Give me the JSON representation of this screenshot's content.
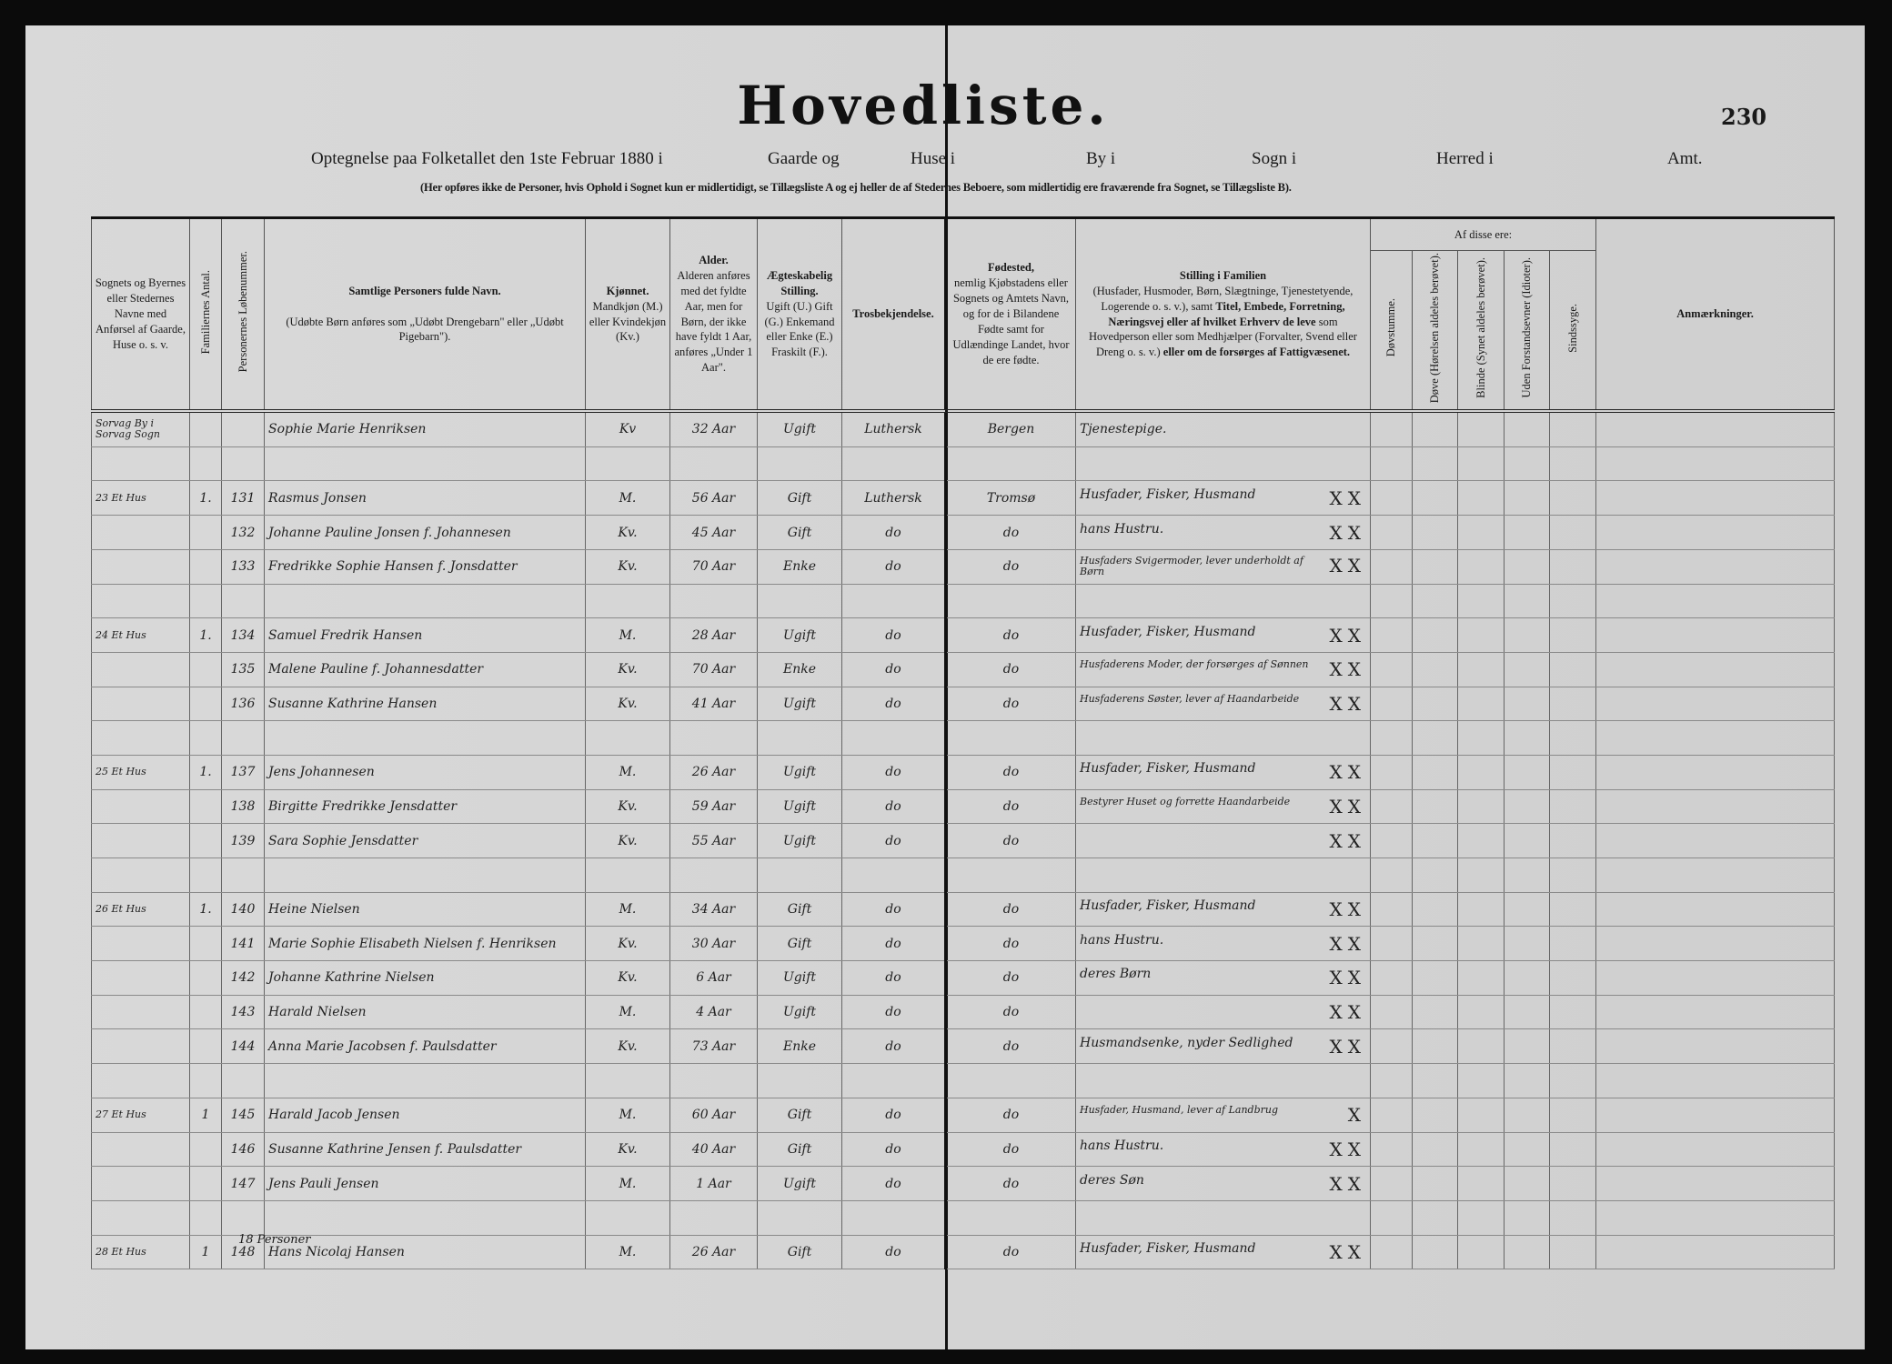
{
  "header": {
    "title": "Hovedliste.",
    "page_number": "230",
    "subtitle": {
      "census": "Optegnelse paa Folketallet den 1ste Februar 1880 i",
      "gaarde": "Gaarde og",
      "huse": "Huse i",
      "by": "By i",
      "sogn": "Sogn i",
      "herred": "Herred i",
      "amt": "Amt."
    },
    "note": "(Her opføres ikke de Personer, hvis Ophold i Sognet kun er midlertidigt, se Tillægsliste A og ej heller de af Stedernes Beboere, som midlertidig ere fraværende fra Sognet, se Tillægsliste B)."
  },
  "columns": {
    "place": "Sognets og Byernes eller Stedernes Navne med Anførsel af Gaarde, Huse o. s. v.",
    "families": "Familiernes Antal.",
    "number": "Personernes Løbenummer.",
    "name_title": "Samtlige Personers fulde Navn.",
    "name_note": "(Udøbte Børn anføres som „Udøbt Drengebarn\" eller „Udøbt Pigebarn\").",
    "sex_title": "Kjønnet.",
    "sex_note": "Mandkjøn (M.) eller Kvindekjøn (Kv.)",
    "age_title": "Alder.",
    "age_note": "Alderen anføres med det fyldte Aar, men for Børn, der ikke have fyldt 1 Aar, anføres „Under 1 Aar\".",
    "marital_title": "Ægteskabelig Stilling.",
    "marital_note": "Ugift (U.) Gift (G.) Enkemand eller Enke (E.) Fraskilt (F.).",
    "religion": "Trosbekjendelse.",
    "birthplace_title": "Fødested,",
    "birthplace_note": "nemlig Kjøbstadens eller Sognets og Amtets Navn, og for de i Bilandene Fødte samt for Udlændinge Landet, hvor de ere fødte.",
    "position_title": "Stilling i Familien",
    "position_note1": "(Husfader, Husmoder, Børn, Slægtninge, Tjenestetyende, Logerende o. s. v.), samt",
    "position_bold1": "Titel, Embede, Forretning, Næringsvej eller af hvilket Erhverv de leve",
    "position_note2": "som Hovedperson eller som Medhjælper (Forvalter, Svend eller Dreng o. s. v.)",
    "position_bold2": "eller om de forsørges af Fattigvæsenet.",
    "af_disse": "Af disse ere:",
    "deaf_mute": "Døvstumme.",
    "deaf": "Døve (Hørelsen aldeles berøvet).",
    "blind": "Blinde (Synet aldeles berøvet).",
    "idiot": "Uden Forstandsevner (Idioter).",
    "insane": "Sindssyge.",
    "remarks": "Anmærkninger."
  },
  "rows": [
    {
      "place": "Sorvag By i Sorvag Sogn",
      "families": "",
      "number": "",
      "name": "Sophie Marie Henriksen",
      "sex": "Kv",
      "age": "32 Aar",
      "marital": "Ugift",
      "religion": "Luthersk",
      "birthplace": "Bergen",
      "position": "Tjenestepige.",
      "marks": ""
    },
    {},
    {
      "place": "23 Et Hus",
      "families": "1.",
      "number": "131",
      "name": "Rasmus Jonsen",
      "sex": "M.",
      "age": "56 Aar",
      "marital": "Gift",
      "religion": "Luthersk",
      "birthplace": "Tromsø",
      "position": "Husfader, Fisker, Husmand",
      "marks": "XX"
    },
    {
      "place": "",
      "families": "",
      "number": "132",
      "name": "Johanne Pauline Jonsen f. Johannesen",
      "sex": "Kv.",
      "age": "45 Aar",
      "marital": "Gift",
      "religion": "do",
      "birthplace": "do",
      "position": "hans Hustru.",
      "marks": "XX"
    },
    {
      "place": "",
      "families": "",
      "number": "133",
      "name": "Fredrikke Sophie Hansen f. Jonsdatter",
      "sex": "Kv.",
      "age": "70 Aar",
      "marital": "Enke",
      "religion": "do",
      "birthplace": "do",
      "position": "Husfaders Svigermoder, lever underholdt af Børn",
      "marks": "XX"
    },
    {},
    {
      "place": "24 Et Hus",
      "families": "1.",
      "number": "134",
      "name": "Samuel Fredrik Hansen",
      "sex": "M.",
      "age": "28 Aar",
      "marital": "Ugift",
      "religion": "do",
      "birthplace": "do",
      "position": "Husfader, Fisker, Husmand",
      "marks": "XX"
    },
    {
      "place": "",
      "families": "",
      "number": "135",
      "name": "Malene Pauline f. Johannesdatter",
      "sex": "Kv.",
      "age": "70 Aar",
      "marital": "Enke",
      "religion": "do",
      "birthplace": "do",
      "position": "Husfaderens Moder, der forsørges af Sønnen",
      "marks": "XX"
    },
    {
      "place": "",
      "families": "",
      "number": "136",
      "name": "Susanne Kathrine Hansen",
      "sex": "Kv.",
      "age": "41 Aar",
      "marital": "Ugift",
      "religion": "do",
      "birthplace": "do",
      "position": "Husfaderens Søster, lever af Haandarbeide",
      "marks": "XX"
    },
    {},
    {
      "place": "25 Et Hus",
      "families": "1.",
      "number": "137",
      "name": "Jens Johannesen",
      "sex": "M.",
      "age": "26 Aar",
      "marital": "Ugift",
      "religion": "do",
      "birthplace": "do",
      "position": "Husfader, Fisker, Husmand",
      "marks": "XX"
    },
    {
      "place": "",
      "families": "",
      "number": "138",
      "name": "Birgitte Fredrikke Jensdatter",
      "sex": "Kv.",
      "age": "59 Aar",
      "marital": "Ugift",
      "religion": "do",
      "birthplace": "do",
      "position": "Bestyrer Huset og forrette Haandarbeide",
      "marks": "XX"
    },
    {
      "place": "",
      "families": "",
      "number": "139",
      "name": "Sara Sophie Jensdatter",
      "sex": "Kv.",
      "age": "55 Aar",
      "marital": "Ugift",
      "religion": "do",
      "birthplace": "do",
      "position": "",
      "marks": "XX"
    },
    {},
    {
      "place": "26 Et Hus",
      "families": "1.",
      "number": "140",
      "name": "Heine Nielsen",
      "sex": "M.",
      "age": "34 Aar",
      "marital": "Gift",
      "religion": "do",
      "birthplace": "do",
      "position": "Husfader, Fisker, Husmand",
      "marks": "XX"
    },
    {
      "place": "",
      "families": "",
      "number": "141",
      "name": "Marie Sophie Elisabeth Nielsen f. Henriksen",
      "sex": "Kv.",
      "age": "30 Aar",
      "marital": "Gift",
      "religion": "do",
      "birthplace": "do",
      "position": "hans Hustru.",
      "marks": "XX"
    },
    {
      "place": "",
      "families": "",
      "number": "142",
      "name": "Johanne Kathrine Nielsen",
      "sex": "Kv.",
      "age": "6 Aar",
      "marital": "Ugift",
      "religion": "do",
      "birthplace": "do",
      "position": "deres Børn",
      "marks": "XX"
    },
    {
      "place": "",
      "families": "",
      "number": "143",
      "name": "Harald Nielsen",
      "sex": "M.",
      "age": "4 Aar",
      "marital": "Ugift",
      "religion": "do",
      "birthplace": "do",
      "position": "",
      "marks": "XX"
    },
    {
      "place": "",
      "families": "",
      "number": "144",
      "name": "Anna Marie Jacobsen f. Paulsdatter",
      "sex": "Kv.",
      "age": "73 Aar",
      "marital": "Enke",
      "religion": "do",
      "birthplace": "do",
      "position": "Husmandsenke, nyder Sedlighed",
      "marks": "XX"
    },
    {},
    {
      "place": "27 Et Hus",
      "families": "1",
      "number": "145",
      "name": "Harald Jacob Jensen",
      "sex": "M.",
      "age": "60 Aar",
      "marital": "Gift",
      "religion": "do",
      "birthplace": "do",
      "position": "Husfader, Husmand, lever af Landbrug",
      "marks": "X"
    },
    {
      "place": "",
      "families": "",
      "number": "146",
      "name": "Susanne Kathrine Jensen f. Paulsdatter",
      "sex": "Kv.",
      "age": "40 Aar",
      "marital": "Gift",
      "religion": "do",
      "birthplace": "do",
      "position": "hans Hustru.",
      "marks": "XX"
    },
    {
      "place": "",
      "families": "",
      "number": "147",
      "name": "Jens Pauli Jensen",
      "sex": "M.",
      "age": "1 Aar",
      "marital": "Ugift",
      "religion": "do",
      "birthplace": "do",
      "position": "deres Søn",
      "marks": "XX"
    },
    {},
    {
      "place": "28 Et Hus",
      "families": "1",
      "number": "148",
      "name": "Hans Nicolaj Hansen",
      "sex": "M.",
      "age": "26 Aar",
      "marital": "Gift",
      "religion": "do",
      "birthplace": "do",
      "position": "Husfader, Fisker, Husmand",
      "marks": "XX"
    }
  ],
  "footer": {
    "total": "18 Personer"
  }
}
